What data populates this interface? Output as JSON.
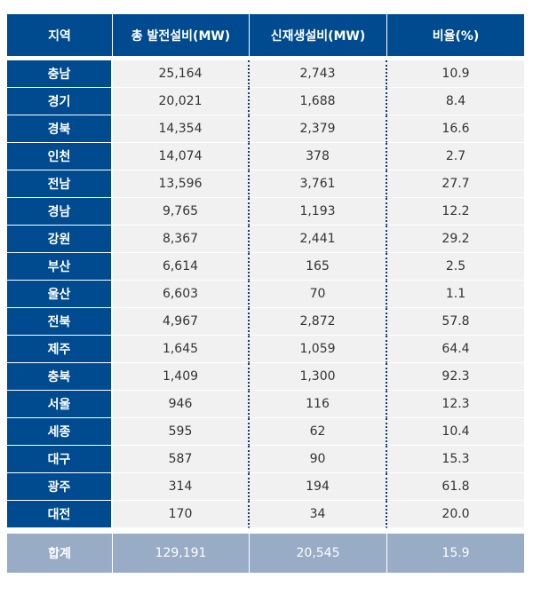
{
  "chart_data": {
    "type": "table",
    "columns": [
      "지역",
      "총 발전설비(MW)",
      "신재생설비(MW)",
      "비율(%)"
    ],
    "rows": [
      [
        "충남",
        "25,164",
        "2,743",
        "10.9"
      ],
      [
        "경기",
        "20,021",
        "1,688",
        "8.4"
      ],
      [
        "경북",
        "14,354",
        "2,379",
        "16.6"
      ],
      [
        "인천",
        "14,074",
        "378",
        "2.7"
      ],
      [
        "전남",
        "13,596",
        "3,761",
        "27.7"
      ],
      [
        "경남",
        "9,765",
        "1,193",
        "12.2"
      ],
      [
        "강원",
        "8,367",
        "2,441",
        "29.2"
      ],
      [
        "부산",
        "6,614",
        "165",
        "2.5"
      ],
      [
        "울산",
        "6,603",
        "70",
        "1.1"
      ],
      [
        "전북",
        "4,967",
        "2,872",
        "57.8"
      ],
      [
        "제주",
        "1,645",
        "1,059",
        "64.4"
      ],
      [
        "충북",
        "1,409",
        "1,300",
        "92.3"
      ],
      [
        "서울",
        "946",
        "116",
        "12.3"
      ],
      [
        "세종",
        "595",
        "62",
        "10.4"
      ],
      [
        "대구",
        "587",
        "90",
        "15.3"
      ],
      [
        "광주",
        "314",
        "194",
        "61.8"
      ],
      [
        "대전",
        "170",
        "34",
        "20.0"
      ]
    ],
    "total": [
      "합계",
      "129,191",
      "20,545",
      "15.9"
    ],
    "colors": {
      "header_bg": "#004b8f",
      "region_bg": "#004b8f",
      "cell_bg": "#f1f1f1",
      "total_bg": "#98acc6",
      "divider": "#143a6b"
    }
  }
}
